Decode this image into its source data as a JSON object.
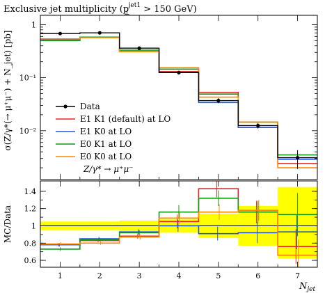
{
  "title": {
    "main": "Exclusive jet multiplicity (p",
    "sup": "jet1",
    "sub": "⊥",
    "rest": " > 150 GeV)"
  },
  "chart_data": [
    {
      "type": "histogram",
      "panel": "main",
      "ylabel": "σ(Z/γ*(→ μ⁺μ⁻) + N_jet) [pb]",
      "yscale": "log",
      "ylim": [
        0.0012,
        1.5
      ],
      "xlim": [
        0.5,
        7.5
      ],
      "x": [
        1,
        2,
        3,
        4,
        5,
        6,
        7
      ],
      "ytick_labels": [
        "1",
        "10⁻¹",
        "10⁻²"
      ],
      "data": {
        "name": "Data",
        "values": [
          0.68,
          0.7,
          0.36,
          0.125,
          0.037,
          0.0125,
          0.0031
        ],
        "errors": [
          0.03,
          0.03,
          0.015,
          0.01,
          0.004,
          0.0015,
          0.0012
        ]
      },
      "series": [
        {
          "name": "E1 K1 (default) at LO",
          "color": "#ee2222",
          "values": [
            0.53,
            0.58,
            0.31,
            0.13,
            0.053,
            0.0145,
            0.0024
          ]
        },
        {
          "name": "E1 K0 at LO",
          "color": "#2255dd",
          "values": [
            0.53,
            0.58,
            0.31,
            0.125,
            0.034,
            0.0115,
            0.0029
          ]
        },
        {
          "name": "E0 K1 at LO",
          "color": "#119911",
          "values": [
            0.5,
            0.58,
            0.33,
            0.145,
            0.049,
            0.0145,
            0.0035
          ]
        },
        {
          "name": "E0 K0 at LO",
          "color": "#ff8800",
          "values": [
            0.54,
            0.57,
            0.31,
            0.155,
            0.043,
            0.0145,
            0.002
          ]
        }
      ],
      "legend_extra": "Z/γ* → μ⁺μ⁻",
      "legend_position": "bottom-left"
    },
    {
      "type": "histogram",
      "panel": "ratio",
      "ylabel": "MC/Data",
      "xlabel": "N_jet",
      "ylim": [
        0.52,
        1.52
      ],
      "xlim": [
        0.5,
        7.5
      ],
      "yticks": [
        0.6,
        0.8,
        1.0,
        1.2,
        1.4
      ],
      "ytick_labels": [
        "0.6",
        "0.8",
        "1",
        "1.2",
        "1.4"
      ],
      "x": [
        1,
        2,
        3,
        4,
        5,
        6,
        7
      ],
      "xtick_labels": [
        "1",
        "2",
        "3",
        "4",
        "5",
        "6",
        "7"
      ],
      "band": {
        "low": [
          0.95,
          0.95,
          0.94,
          0.92,
          0.86,
          0.77,
          0.62
        ],
        "high": [
          1.05,
          1.05,
          1.06,
          1.08,
          1.14,
          1.23,
          1.45
        ]
      },
      "series": [
        {
          "name": "E1 K1 (default) at LO",
          "color": "#ee2222",
          "values": [
            0.78,
            0.83,
            0.88,
            1.05,
            1.43,
            1.16,
            0.76
          ],
          "errors": [
            0.02,
            0.02,
            0.03,
            0.08,
            0.1,
            0.13,
            0.2
          ]
        },
        {
          "name": "E1 K0 at LO",
          "color": "#2255dd",
          "values": [
            0.78,
            0.85,
            0.93,
            1.0,
            0.91,
            0.92,
            0.93
          ],
          "errors": [
            0.02,
            0.02,
            0.03,
            0.07,
            0.08,
            0.12,
            0.2
          ]
        },
        {
          "name": "E0 K1 at LO",
          "color": "#119911",
          "values": [
            0.73,
            0.84,
            0.92,
            1.16,
            1.32,
            1.16,
            1.13
          ],
          "errors": [
            0.02,
            0.02,
            0.03,
            0.08,
            0.09,
            0.13,
            0.25
          ]
        },
        {
          "name": "E0 K0 at LO",
          "color": "#ff8800",
          "values": [
            0.79,
            0.8,
            0.87,
            1.09,
            1.16,
            1.18,
            0.66
          ],
          "errors": [
            0.02,
            0.02,
            0.03,
            0.07,
            0.09,
            0.12,
            0.18
          ]
        }
      ]
    }
  ]
}
